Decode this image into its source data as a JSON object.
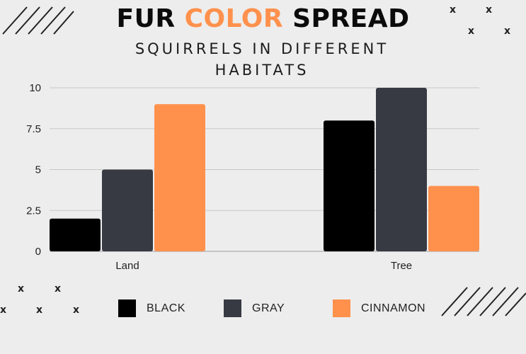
{
  "title_parts": [
    "FUR ",
    "COLOR",
    " SPREAD"
  ],
  "subtitle": "SQUIRRELS IN DIFFERENT HABITATS",
  "colors": {
    "background": "#ededed",
    "accent": "#ff914d",
    "grid": "#c8c8c8"
  },
  "chart_data": {
    "type": "bar",
    "categories": [
      "Land",
      "Tree"
    ],
    "series": [
      {
        "name": "BLACK",
        "values": [
          2,
          8
        ],
        "color": "#000000"
      },
      {
        "name": "GRAY",
        "values": [
          5,
          10
        ],
        "color": "#373a43"
      },
      {
        "name": "CINNAMON",
        "values": [
          9,
          4
        ],
        "color": "#ff914d"
      }
    ],
    "yticks": [
      "0",
      "2.5",
      "5",
      "7.5",
      "10"
    ],
    "ylim": [
      0,
      10
    ],
    "grid": true,
    "legend": "bottom"
  },
  "decor": {
    "mark": "x"
  }
}
